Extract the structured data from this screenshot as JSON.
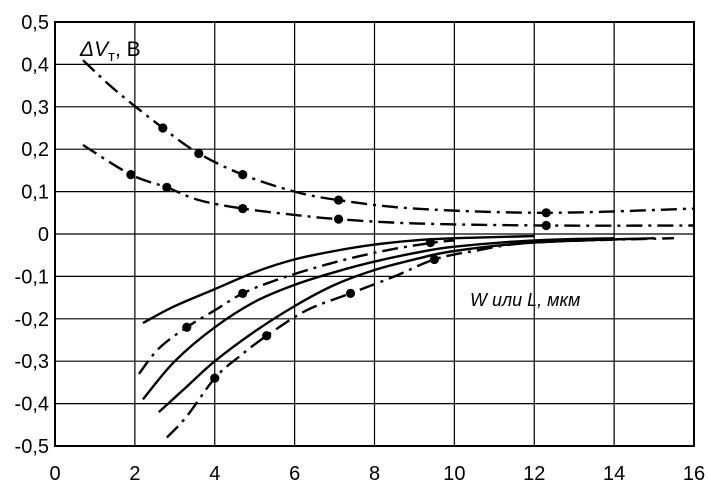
{
  "chart_data": {
    "type": "line",
    "ylabel": "ΔVт, В",
    "annotation": "W или L, мкм",
    "xlim": [
      0,
      16
    ],
    "ylim": [
      -0.5,
      0.5
    ],
    "x_ticks": [
      "0",
      "2",
      "4",
      "6",
      "8",
      "10",
      "12",
      "14",
      "16"
    ],
    "y_ticks": [
      "0,5",
      "0,4",
      "0,3",
      "0,2",
      "0,1",
      "0",
      "-0,1",
      "-0,2",
      "-0,3",
      "-0,4",
      "-0,5"
    ],
    "grid": true,
    "series": [
      {
        "style": "dash-dot",
        "x": [
          0.7,
          1.5,
          2.7,
          3.6,
          4.7,
          6,
          7.1,
          9,
          12.3,
          16
        ],
        "y": [
          0.41,
          0.34,
          0.25,
          0.19,
          0.14,
          0.1,
          0.08,
          0.06,
          0.05,
          0.06
        ],
        "markers": [
          [
            2.7,
            0.25
          ],
          [
            3.6,
            0.19
          ],
          [
            4.7,
            0.14
          ],
          [
            7.1,
            0.08
          ],
          [
            12.3,
            0.05
          ]
        ]
      },
      {
        "style": "dash-dot",
        "x": [
          0.7,
          1.9,
          2.8,
          3.6,
          4.7,
          6,
          7.1,
          9,
          12.3,
          16
        ],
        "y": [
          0.21,
          0.14,
          0.11,
          0.08,
          0.06,
          0.045,
          0.035,
          0.025,
          0.02,
          0.02
        ],
        "markers": [
          [
            1.9,
            0.14
          ],
          [
            2.8,
            0.11
          ],
          [
            4.7,
            0.06
          ],
          [
            7.1,
            0.035
          ],
          [
            12.3,
            0.02
          ]
        ]
      },
      {
        "style": "solid",
        "x": [
          2.2,
          3,
          4,
          5,
          6,
          7,
          8,
          9,
          10,
          12
        ],
        "y": [
          -0.21,
          -0.17,
          -0.13,
          -0.09,
          -0.06,
          -0.04,
          -0.025,
          -0.015,
          -0.01,
          -0.005
        ],
        "markers": []
      },
      {
        "style": "dash-dot",
        "x": [
          2.1,
          2.6,
          3.3,
          4,
          4.7,
          5.5,
          6.5,
          7.5,
          8.5,
          9.5,
          10
        ],
        "y": [
          -0.33,
          -0.27,
          -0.22,
          -0.18,
          -0.14,
          -0.11,
          -0.08,
          -0.055,
          -0.035,
          -0.02,
          -0.015
        ],
        "markers": [
          [
            3.3,
            -0.22
          ],
          [
            4.7,
            -0.14
          ],
          [
            9.4,
            -0.02
          ]
        ]
      },
      {
        "style": "solid",
        "x": [
          2.2,
          3,
          4,
          5,
          6,
          7,
          8,
          9,
          10,
          12,
          14
        ],
        "y": [
          -0.39,
          -0.3,
          -0.22,
          -0.16,
          -0.12,
          -0.09,
          -0.065,
          -0.045,
          -0.03,
          -0.015,
          -0.01
        ],
        "markers": []
      },
      {
        "style": "solid",
        "x": [
          2.6,
          3.3,
          4,
          5,
          6,
          7,
          8,
          9,
          10,
          12,
          15
        ],
        "y": [
          -0.42,
          -0.36,
          -0.3,
          -0.23,
          -0.17,
          -0.12,
          -0.085,
          -0.06,
          -0.04,
          -0.02,
          -0.01
        ],
        "markers": []
      },
      {
        "style": "dash-dot",
        "x": [
          2.8,
          3.3,
          4,
          4.6,
          5.3,
          6.3,
          7.4,
          8.5,
          9.5,
          10.5,
          12,
          15.5
        ],
        "y": [
          -0.48,
          -0.43,
          -0.34,
          -0.29,
          -0.24,
          -0.18,
          -0.14,
          -0.1,
          -0.06,
          -0.04,
          -0.02,
          -0.01
        ],
        "markers": [
          [
            4,
            -0.34
          ],
          [
            5.3,
            -0.24
          ],
          [
            7.4,
            -0.14
          ],
          [
            9.5,
            -0.06
          ]
        ]
      }
    ]
  }
}
